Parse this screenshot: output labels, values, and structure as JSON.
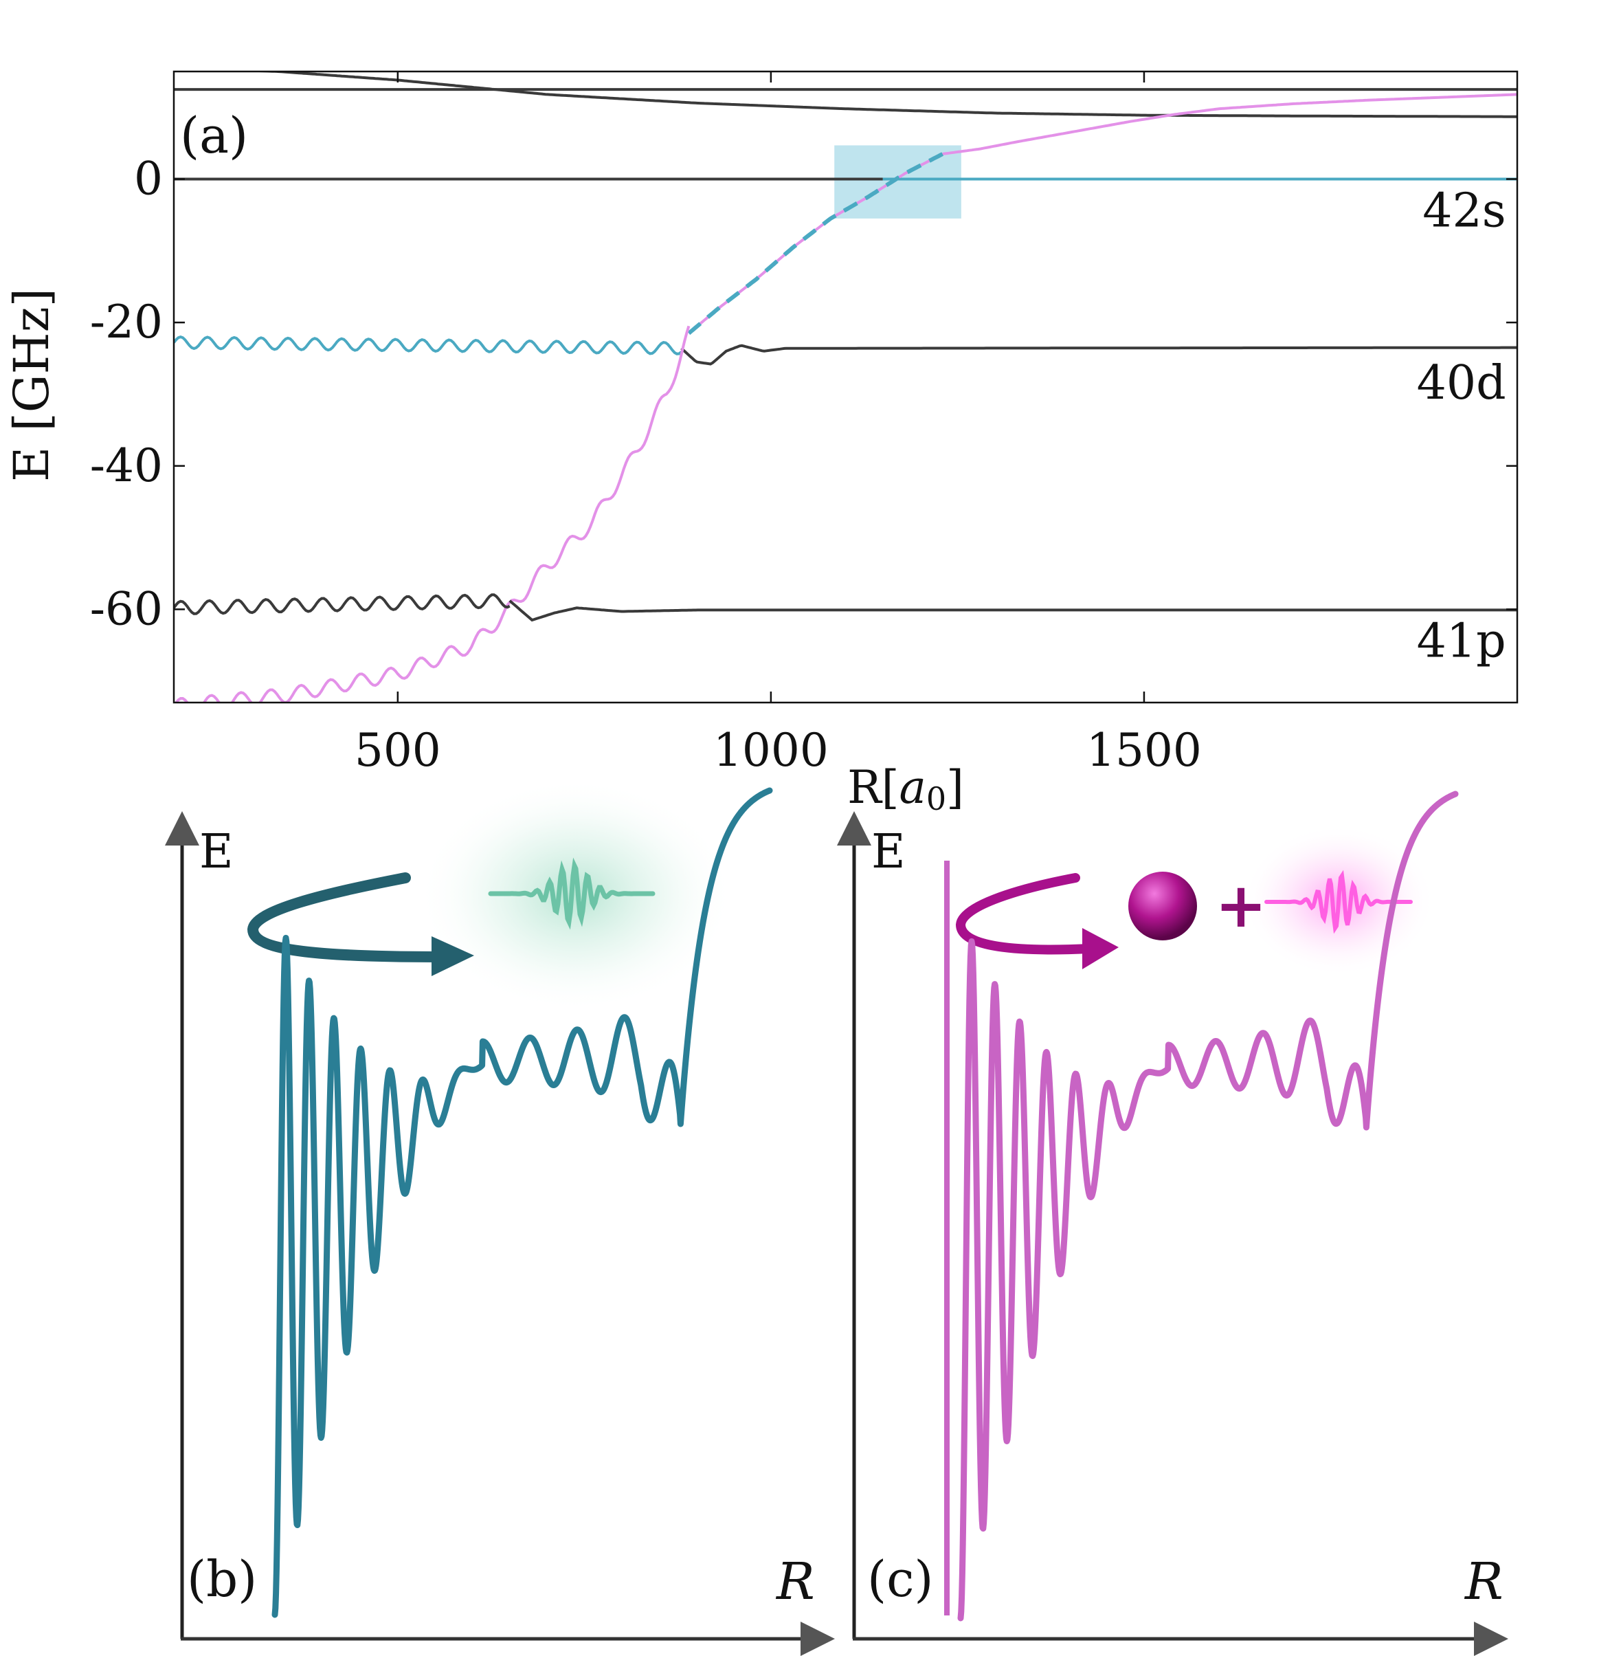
{
  "colors": {
    "black": "#3a3a3a",
    "teal": "#4aa9c2",
    "teal_dark": "#2a7e95",
    "teal_arrow": "#24606e",
    "pink": "#e391e8",
    "pink_dark": "#c864c4",
    "magenta": "#a8108c",
    "highlight": "#a9dbe8",
    "green_wave": "#6cc3a6",
    "pink_wave": "#ff6fe6"
  },
  "chart_data": [
    {
      "panel": "(a)",
      "type": "line",
      "xlabel": "R[a0]",
      "ylabel": "E [GHz]",
      "xlim": [
        200,
        2000
      ],
      "ylim": [
        -73,
        15
      ],
      "xticks": [
        500,
        1000,
        1500
      ],
      "xtick_labels": [
        "500",
        "1000",
        "1500"
      ],
      "yticks": [
        0,
        -20,
        -40,
        -60
      ],
      "ytick_labels": [
        "0",
        "-20",
        "-40",
        "-60"
      ],
      "state_labels": [
        {
          "text": "42s",
          "x": 1985,
          "y": -4.5
        },
        {
          "text": "40d",
          "x": 1985,
          "y": -28.5
        },
        {
          "text": "41p",
          "x": 1985,
          "y": -64.5
        }
      ],
      "highlight_region": {
        "x": [
          1085,
          1255
        ],
        "y": [
          -5.5,
          4.7
        ]
      },
      "series": [
        {
          "name": "upper-flat",
          "color": "black",
          "points": [
            [
              200,
              12.5
            ],
            [
              2000,
              12.5
            ]
          ]
        },
        {
          "name": "upper-descending",
          "color": "black",
          "points": [
            [
              200,
              15.5
            ],
            [
              340,
              15
            ],
            [
              500,
              13.8
            ],
            [
              700,
              11.8
            ],
            [
              900,
              10.6
            ],
            [
              1100,
              9.8
            ],
            [
              1300,
              9.2
            ],
            [
              1500,
              8.9
            ],
            [
              1700,
              8.8
            ],
            [
              2000,
              8.7
            ]
          ]
        },
        {
          "name": "42s-black",
          "color": "black",
          "points": [
            [
              200,
              0
            ],
            [
              1150,
              0
            ]
          ]
        },
        {
          "name": "42s-teal",
          "color": "teal",
          "points": [
            [
              1150,
              0
            ],
            [
              2000,
              0
            ]
          ]
        },
        {
          "name": "pink-upper",
          "color": "pink",
          "points": [
            [
              1230,
              3.5
            ],
            [
              1280,
              4.2
            ],
            [
              1330,
              5.2
            ],
            [
              1400,
              6.5
            ],
            [
              1480,
              8
            ],
            [
              1540,
              9
            ],
            [
              1600,
              9.8
            ],
            [
              1700,
              10.5
            ],
            [
              1800,
              11
            ],
            [
              1900,
              11.4
            ],
            [
              2000,
              11.8
            ]
          ]
        },
        {
          "name": "crossing-dashed",
          "color": "pink",
          "dashed_color": "teal",
          "points": [
            [
              890,
              -21.5
            ],
            [
              930,
              -18
            ],
            [
              980,
              -14
            ],
            [
              1030,
              -9.5
            ],
            [
              1080,
              -5.5
            ],
            [
              1130,
              -2.5
            ],
            [
              1180,
              0.8
            ],
            [
              1230,
              3.5
            ]
          ]
        },
        {
          "name": "40d-teal",
          "color": "teal",
          "wiggle": 0.8,
          "period": 36,
          "points": [
            [
              200,
              -22.8
            ],
            [
              880,
              -23.6
            ]
          ]
        },
        {
          "name": "40d-black",
          "color": "black",
          "points": [
            [
              880,
              -23.6
            ],
            [
              900,
              -25.5
            ],
            [
              920,
              -25.8
            ],
            [
              940,
              -24
            ],
            [
              960,
              -23.2
            ],
            [
              990,
              -24
            ],
            [
              1020,
              -23.6
            ],
            [
              1100,
              -23.6
            ],
            [
              2000,
              -23.5
            ]
          ]
        },
        {
          "name": "pink-lower",
          "color": "pink",
          "wiggle": 1.0,
          "period": 40,
          "points": [
            [
              200,
              -73.5
            ],
            [
              350,
              -72
            ],
            [
              500,
              -69
            ],
            [
              600,
              -65
            ],
            [
              650,
              -60
            ],
            [
              700,
              -54
            ],
            [
              760,
              -48
            ],
            [
              820,
              -38
            ],
            [
              860,
              -30
            ],
            [
              880,
              -24.5
            ],
            [
              890,
              -21.5
            ]
          ]
        },
        {
          "name": "41p-black-left",
          "color": "black",
          "wiggle": 0.9,
          "period": 38,
          "points": [
            [
              200,
              -59.8
            ],
            [
              650,
              -58.8
            ]
          ]
        },
        {
          "name": "41p-black-right",
          "color": "black",
          "points": [
            [
              650,
              -58.8
            ],
            [
              680,
              -61.5
            ],
            [
              710,
              -60.5
            ],
            [
              740,
              -59.8
            ],
            [
              800,
              -60.3
            ],
            [
              900,
              -60.1
            ],
            [
              2000,
              -60.1
            ]
          ]
        }
      ]
    },
    {
      "panel": "(b)",
      "type": "line",
      "xlabel": "R",
      "ylabel": "E",
      "description_series": "teal oscillating potential curve",
      "color": "teal_dark"
    },
    {
      "panel": "(c)",
      "type": "line",
      "xlabel": "R",
      "ylabel": "E",
      "description_series": "magenta oscillating potential curve",
      "color": "pink_dark"
    }
  ]
}
